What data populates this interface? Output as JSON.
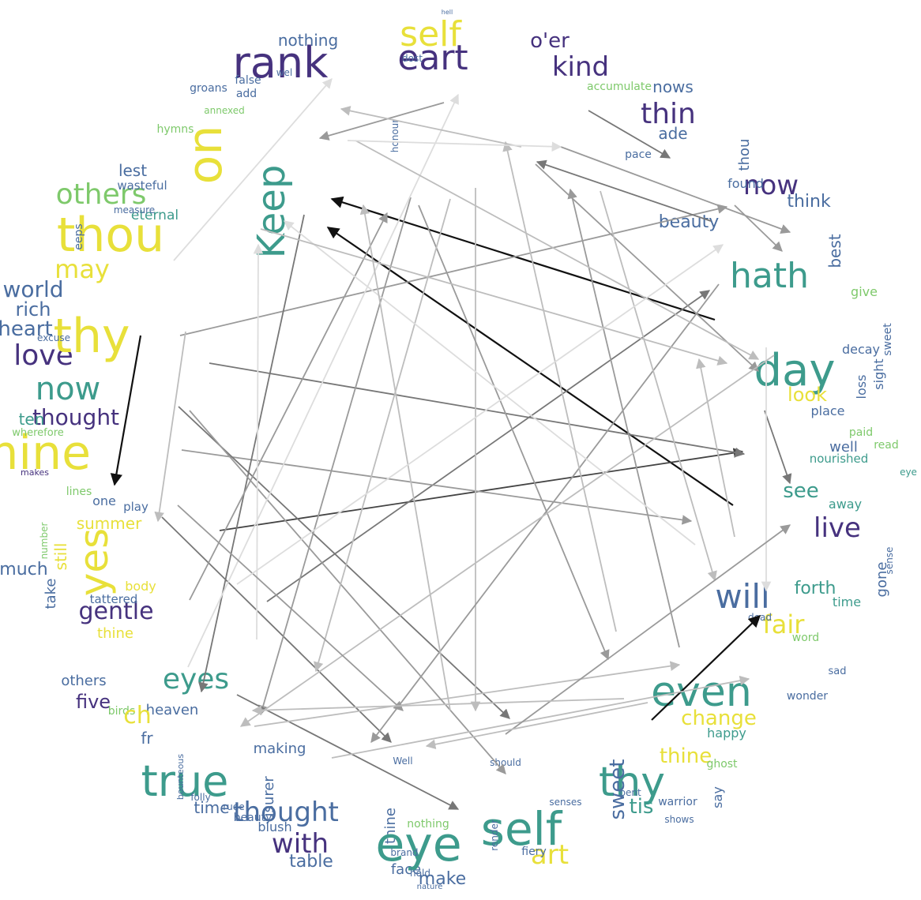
{
  "palette": [
    "#e8e03a",
    "#3d9b8c",
    "#4a6da0",
    "#46327e",
    "#7ec96b",
    "#2d7f8e",
    "#b5de2b",
    "#c9c9c9"
  ],
  "edge_colors": [
    "#111111",
    "#444444",
    "#777777",
    "#9a9a9a",
    "#bdbdbd",
    "#dddddd"
  ],
  "words": [
    {
      "t": "self",
      "c": 0
    },
    {
      "t": "eart",
      "c": 3
    },
    {
      "t": "rank",
      "c": 3
    },
    {
      "t": "o'er",
      "c": 3
    },
    {
      "t": "kind",
      "c": 3
    },
    {
      "t": "nothing",
      "c": 2
    },
    {
      "t": "Keep",
      "c": 1
    },
    {
      "t": "others",
      "c": 4
    },
    {
      "t": "thou",
      "c": 0
    },
    {
      "t": "on",
      "c": 0
    },
    {
      "t": "lest",
      "c": 2
    },
    {
      "t": "wasteful",
      "c": 2
    },
    {
      "t": "eternal",
      "c": 1
    },
    {
      "t": "may",
      "c": 0
    },
    {
      "t": "world",
      "c": 2
    },
    {
      "t": "rich",
      "c": 2
    },
    {
      "t": "heart",
      "c": 2
    },
    {
      "t": "love",
      "c": 3
    },
    {
      "t": "now",
      "c": 1
    },
    {
      "t": "thought",
      "c": 3
    },
    {
      "t": "ten",
      "c": 1
    },
    {
      "t": "mine",
      "c": 0
    },
    {
      "t": "thy",
      "c": 0
    },
    {
      "t": "lines",
      "c": 4
    },
    {
      "t": "one",
      "c": 2
    },
    {
      "t": "play",
      "c": 2
    },
    {
      "t": "summer",
      "c": 0
    },
    {
      "t": "yes",
      "c": 0
    },
    {
      "t": "much",
      "c": 2
    },
    {
      "t": "still",
      "c": 0
    },
    {
      "t": "take",
      "c": 2
    },
    {
      "t": "gentle",
      "c": 3
    },
    {
      "t": "tattered",
      "c": 2
    },
    {
      "t": "body",
      "c": 0
    },
    {
      "t": "thine",
      "c": 0
    },
    {
      "t": "eyes",
      "c": 1
    },
    {
      "t": "five",
      "c": 3
    },
    {
      "t": "others",
      "c": 2
    },
    {
      "t": "heaven",
      "c": 2
    },
    {
      "t": "true",
      "c": 1
    },
    {
      "t": "time",
      "c": 2
    },
    {
      "t": "usurer",
      "c": 2
    },
    {
      "t": "thought",
      "c": 2
    },
    {
      "t": "blush",
      "c": 2
    },
    {
      "t": "with",
      "c": 3
    },
    {
      "t": "table",
      "c": 2
    },
    {
      "t": "making",
      "c": 2
    },
    {
      "t": "thine",
      "c": 2
    },
    {
      "t": "face",
      "c": 2
    },
    {
      "t": "make",
      "c": 2
    },
    {
      "t": "eye",
      "c": 1
    },
    {
      "t": "self",
      "c": 1
    },
    {
      "t": "art",
      "c": 0
    },
    {
      "t": "thy",
      "c": 1
    },
    {
      "t": "thine",
      "c": 0
    },
    {
      "t": "sweet",
      "c": 2
    },
    {
      "t": "even",
      "c": 1
    },
    {
      "t": "change",
      "c": 0
    },
    {
      "t": "happy",
      "c": 1
    },
    {
      "t": "say",
      "c": 2
    },
    {
      "t": "tis",
      "c": 1
    },
    {
      "t": "will",
      "c": 2
    },
    {
      "t": "fair",
      "c": 0
    },
    {
      "t": "forth",
      "c": 1
    },
    {
      "t": "time",
      "c": 1
    },
    {
      "t": "live",
      "c": 3
    },
    {
      "t": "gone",
      "c": 2
    },
    {
      "t": "away",
      "c": 1
    },
    {
      "t": "see",
      "c": 1
    },
    {
      "t": "well",
      "c": 2
    },
    {
      "t": "nourished",
      "c": 1
    },
    {
      "t": "read",
      "c": 4
    },
    {
      "t": "paid",
      "c": 4
    },
    {
      "t": "eye",
      "c": 1
    },
    {
      "t": "day",
      "c": 1
    },
    {
      "t": "look",
      "c": 0
    },
    {
      "t": "place",
      "c": 2
    },
    {
      "t": "loss",
      "c": 2
    },
    {
      "t": "sight",
      "c": 2
    },
    {
      "t": "sweet",
      "c": 2
    },
    {
      "t": "give",
      "c": 4
    },
    {
      "t": "decay",
      "c": 2
    },
    {
      "t": "hath",
      "c": 1
    },
    {
      "t": "best",
      "c": 2
    },
    {
      "t": "think",
      "c": 2
    },
    {
      "t": "now",
      "c": 3
    },
    {
      "t": "found",
      "c": 2
    },
    {
      "t": "thou",
      "c": 2
    },
    {
      "t": "thin",
      "c": 3
    },
    {
      "t": "nows",
      "c": 2
    },
    {
      "t": "beauty",
      "c": 2
    },
    {
      "t": "ade",
      "c": 2
    },
    {
      "t": "pace",
      "c": 2
    },
    {
      "t": "accumulate",
      "c": 4
    },
    {
      "t": "add",
      "c": 2
    },
    {
      "t": "groans",
      "c": 2
    },
    {
      "t": "false",
      "c": 2
    },
    {
      "t": "hymns",
      "c": 4
    },
    {
      "t": "annexed",
      "c": 4
    },
    {
      "t": "measure",
      "c": 2
    },
    {
      "t": "eeps",
      "c": 2
    },
    {
      "t": "excuse",
      "c": 2
    },
    {
      "t": "wherefore",
      "c": 4
    },
    {
      "t": "makes",
      "c": 3
    },
    {
      "t": "birds",
      "c": 4
    },
    {
      "t": "number",
      "c": 4
    },
    {
      "t": "sad",
      "c": 2
    },
    {
      "t": "wonder",
      "c": 2
    },
    {
      "t": "word",
      "c": 4
    },
    {
      "t": "ghost",
      "c": 4
    },
    {
      "t": "warrior",
      "c": 2
    },
    {
      "t": "shows",
      "c": 2
    },
    {
      "t": "fiery",
      "c": 2
    },
    {
      "t": "render",
      "c": 2
    },
    {
      "t": "brand",
      "c": 2
    },
    {
      "t": "hold",
      "c": 2
    },
    {
      "t": "nature",
      "c": 2
    },
    {
      "t": "nothing",
      "c": 4
    },
    {
      "t": "beauty",
      "c": 2
    },
    {
      "t": "rude",
      "c": 2
    },
    {
      "t": "folly",
      "c": 2
    },
    {
      "t": "bounteous",
      "c": 2
    },
    {
      "t": "honour",
      "c": 2
    },
    {
      "t": "dost",
      "c": 2
    },
    {
      "t": "wel",
      "c": 2
    },
    {
      "t": "hell",
      "c": 2
    },
    {
      "t": "pent",
      "c": 2
    },
    {
      "t": "sense",
      "c": 2
    },
    {
      "t": "dead",
      "c": 2
    },
    {
      "t": "fr",
      "c": 2
    },
    {
      "t": "ch",
      "c": 0
    },
    {
      "t": "Well",
      "c": 2
    },
    {
      "t": "should",
      "c": 2
    },
    {
      "t": "senses",
      "c": 2
    }
  ]
}
